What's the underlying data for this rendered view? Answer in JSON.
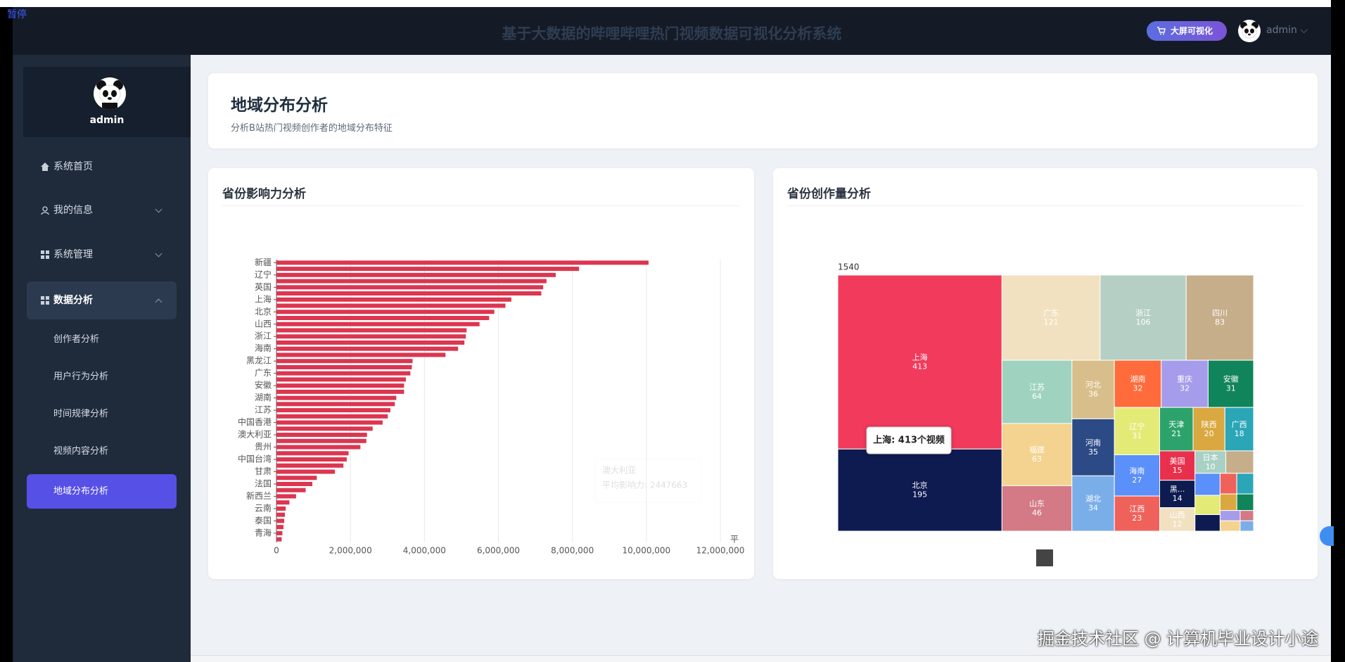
{
  "header": {
    "pause": "暂停",
    "title": "基于大数据的哔哩哔哩热门视频数据可视化分析系统",
    "screen_button": "大屏可视化",
    "user": "admin"
  },
  "sidebar": {
    "user": "admin",
    "menu": [
      "系统首页",
      "我的信息",
      "系统管理",
      "数据分析"
    ],
    "submenu": [
      "创作者分析",
      "用户行为分析",
      "时间规律分析",
      "视频内容分析",
      "地域分布分析"
    ]
  },
  "page": {
    "title": "地域分布分析",
    "subtitle": "分析B站热门视频创作者的地域分布特征"
  },
  "chart_data": [
    {
      "type": "bar",
      "orientation": "horizontal",
      "title": "省份影响力分析",
      "xlabel": "平",
      "categories": [
        "新疆",
        null,
        "辽宁",
        null,
        "英国",
        null,
        "上海",
        null,
        "北京",
        null,
        "山西",
        null,
        "浙江",
        null,
        "海南",
        null,
        "黑龙江",
        null,
        "广东",
        null,
        "安徽",
        null,
        "湖南",
        null,
        "江苏",
        null,
        "中国香港",
        null,
        "澳大利亚",
        null,
        "贵州",
        null,
        "中国台湾",
        null,
        "甘肃",
        null,
        "法国",
        null,
        "新西兰",
        null,
        "云南",
        null,
        "泰国",
        null,
        "青海",
        null
      ],
      "values": [
        10060000,
        8180000,
        7550000,
        7300000,
        7210000,
        7160000,
        6350000,
        6190000,
        5890000,
        5750000,
        5490000,
        5140000,
        5120000,
        5080000,
        4910000,
        4570000,
        3680000,
        3660000,
        3620000,
        3500000,
        3450000,
        3450000,
        3240000,
        3200000,
        3080000,
        3010000,
        2870000,
        2600000,
        2447663,
        2430000,
        2270000,
        1950000,
        1900000,
        1810000,
        1580000,
        1090000,
        970000,
        790000,
        530000,
        350000,
        250000,
        230000,
        210000,
        190000,
        160000,
        140000
      ],
      "color": "#dc3650",
      "xlim": [
        0,
        12000000
      ],
      "xticks": [
        0,
        {
          "value": 2000000,
          "label": "2,000,000"
        },
        {
          "value": 4000000,
          "label": "4,000,000"
        },
        {
          "value": 6000000,
          "label": "6,000,000"
        },
        {
          "value": 8000000,
          "label": "8,000,000"
        },
        {
          "value": 10000000,
          "label": "10,000,000"
        },
        {
          "value": 12000000,
          "label": "12,000,000"
        }
      ],
      "grid": true,
      "tooltip": {
        "title": "澳大利亚",
        "text": "平均影响力: 2447663"
      }
    },
    {
      "type": "treemap",
      "title": "省份创作量分析",
      "total": 1540,
      "categories": [
        "上海",
        "北京",
        "广东",
        "浙江",
        "四川",
        "江苏",
        "福建",
        "山东",
        "河北",
        "河南",
        "湖北",
        "湖南",
        "重庆",
        "安徽",
        "辽宁",
        "海南",
        "江西",
        "天津",
        "陕西",
        "广西",
        "美国",
        "黑...",
        "山西",
        "日本",
        null,
        null,
        null,
        null,
        null,
        null,
        null,
        null,
        null,
        null,
        null,
        null
      ],
      "values": [
        413,
        195,
        121,
        106,
        83,
        64,
        63,
        46,
        36,
        35,
        34,
        32,
        32,
        31,
        31,
        27,
        23,
        21,
        20,
        18,
        15,
        14,
        12,
        10,
        9,
        8,
        7,
        6,
        5,
        5,
        4,
        4,
        3,
        3,
        2,
        2
      ],
      "colors": [
        "#f23a5c",
        "#0e1b50",
        "#f1e1c0",
        "#b6cfc4",
        "#c6ae8b",
        "#9fd3bf",
        "#f3d38f",
        "#d37a86",
        "#d8be8a",
        "#2c4a86",
        "#7aaee8",
        "#ff6b3a",
        "#a69cec",
        "#10845a",
        "#e4ea76",
        "#5b8ff9",
        "#ef625b",
        "#2ca36a",
        "#d9a841",
        "#2aa6b7",
        "#e8304d",
        "#0e1b50",
        "#f1e1c0",
        "#a9d0c4",
        "#c6ae8b",
        "#5b8ff9",
        "#e4ea76",
        "#0e1b50",
        "#ef625b",
        "#2aa6b7",
        "#d9a841",
        "#10845a",
        "#a69cec",
        "#f3d38f",
        "#d37a86",
        "#7aaee8"
      ],
      "tooltip": "上海: 413个视频"
    }
  ],
  "watermark": "掘金技术社区 @ 计算机毕业设计小途"
}
